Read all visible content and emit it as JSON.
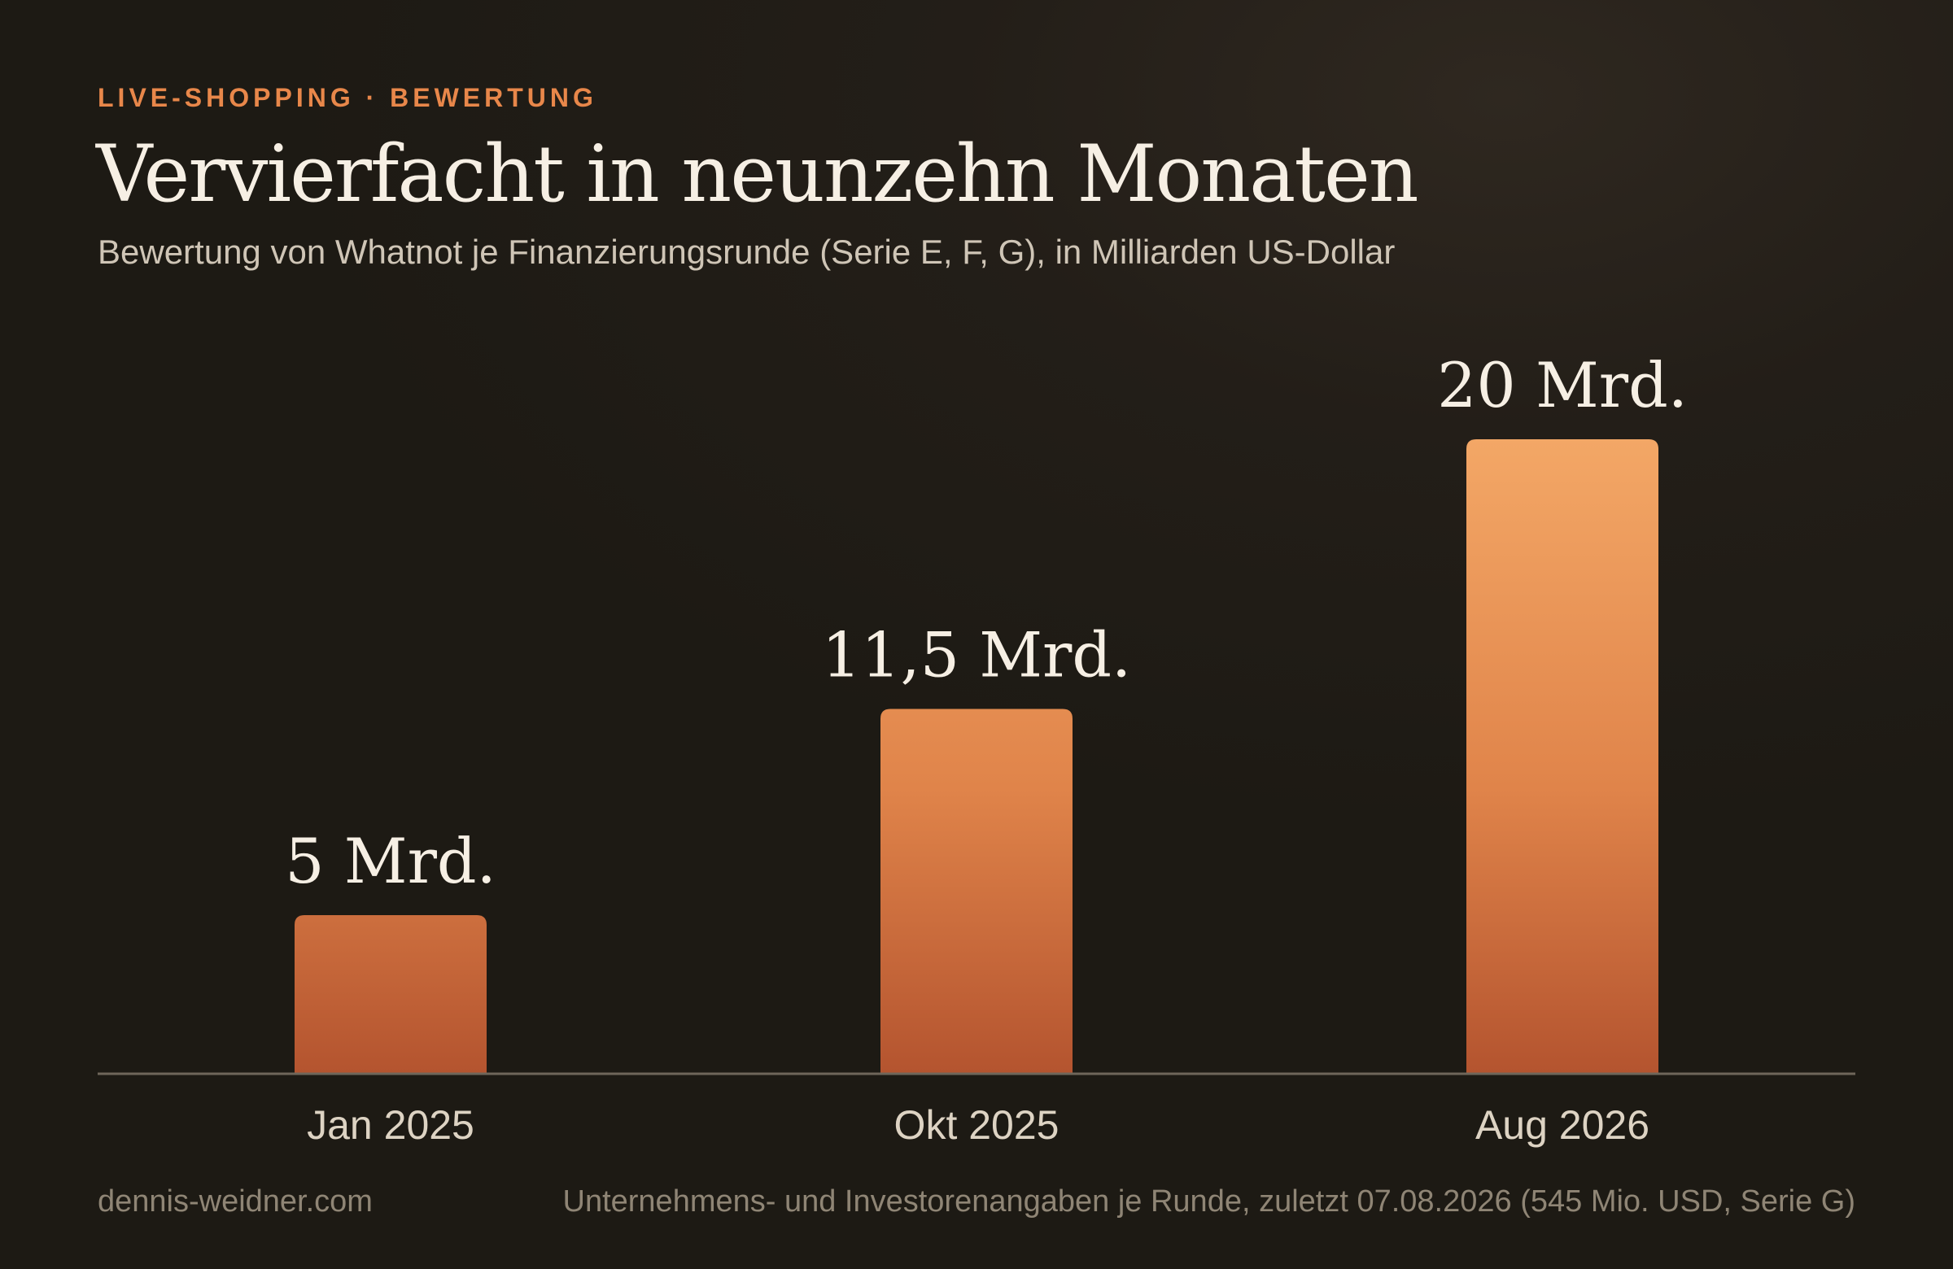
{
  "header": {
    "kicker": "LIVE-SHOPPING · BEWERTUNG",
    "title": "Vervierfacht in neunzehn Monaten",
    "subtitle": "Bewertung von Whatnot je Finanzierungsrunde (Serie E, F, G), in Milliarden US-Dollar"
  },
  "footer": {
    "site": "dennis-weidner.com",
    "source": "Unternehmens- und Investorenangaben je Runde, zuletzt 07.08.2026 (545 Mio. USD, Serie G)"
  },
  "colors": {
    "accent": "#e8874a",
    "bar_top": "#f3a766",
    "bar_bottom": "#b4542f",
    "baseline": "#6e665a"
  },
  "chart_data": {
    "type": "bar",
    "categories": [
      "Jan 2025",
      "Okt 2025",
      "Aug 2026"
    ],
    "values": [
      5,
      11.5,
      20
    ],
    "data_labels": [
      "5 Mrd.",
      "11,5 Mrd.",
      "20 Mrd."
    ],
    "title": "Vervierfacht in neunzehn Monaten",
    "xlabel": "",
    "ylabel": "",
    "ylim": [
      0,
      20
    ],
    "grid": false,
    "legend": "none"
  }
}
